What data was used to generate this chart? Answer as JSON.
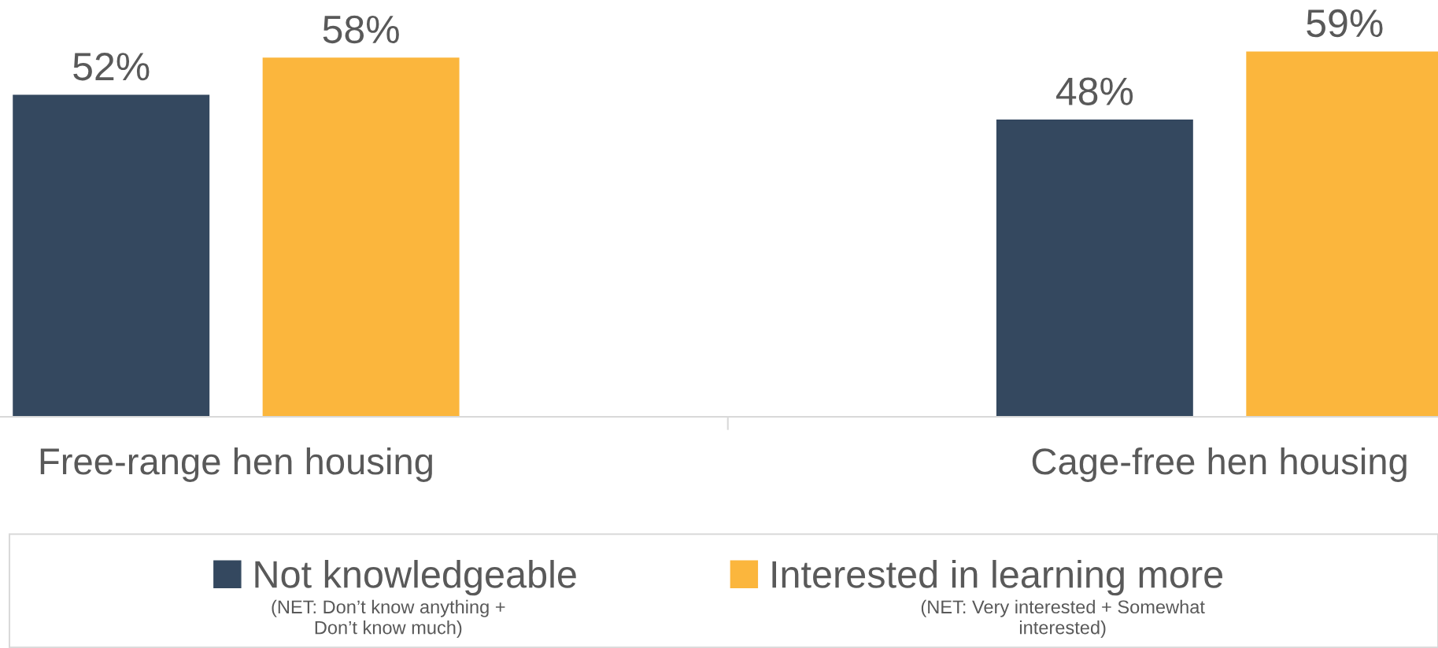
{
  "chart_data": {
    "type": "bar",
    "categories": [
      "Free-range hen housing",
      "Cage-free hen housing"
    ],
    "series": [
      {
        "name": "Not knowledgeable",
        "color": "#34485f",
        "values": [
          52,
          48
        ],
        "value_labels": [
          "52%",
          "48%"
        ]
      },
      {
        "name": "Interested in learning more",
        "color": "#fbb63d",
        "values": [
          58,
          59
        ],
        "value_labels": [
          "58%",
          "59%"
        ]
      }
    ],
    "legend": "bottom",
    "grid": false,
    "annotations": [
      "(NET: Don’t know anything +\nDon’t know much)",
      "(NET: Very interested + Somewhat\ninterested)"
    ]
  }
}
